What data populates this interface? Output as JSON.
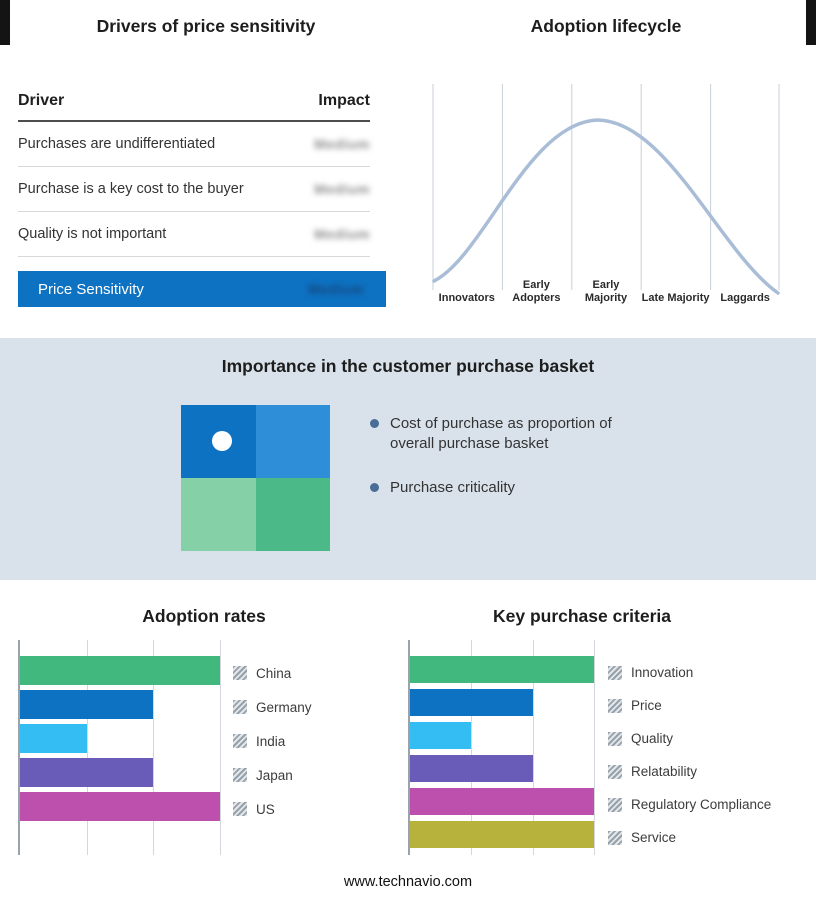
{
  "page": {
    "website": "www.technavio.com"
  },
  "colors": {
    "accent_blue": "#0d72c2",
    "light_blue": "#2f8ed8",
    "green": "#4cba88",
    "light_green": "#85d0a7",
    "curve": "#aabdd7",
    "section_bg": "#d9e2eb"
  },
  "drivers": {
    "title": "Drivers of price sensitivity",
    "columns": {
      "driver": "Driver",
      "impact": "Impact"
    },
    "rows": [
      {
        "driver": "Purchases are undifferentiated",
        "impact": "Medium",
        "impact_obscured": true
      },
      {
        "driver": "Purchase is a key cost to the buyer",
        "impact": "Medium",
        "impact_obscured": true
      },
      {
        "driver": "Quality is not important",
        "impact": "Medium",
        "impact_obscured": true
      }
    ],
    "summary": {
      "label": "Price Sensitivity",
      "impact": "Medium",
      "impact_obscured": true
    }
  },
  "lifecycle": {
    "title": "Adoption lifecycle",
    "stages": [
      "Innovators",
      "Early Adopters",
      "Early Majority",
      "Late Majority",
      "Laggards"
    ]
  },
  "basket": {
    "title": "Importance in the customer purchase basket",
    "bullets": [
      "Cost of purchase as proportion of overall purchase basket",
      "Purchase criticality"
    ]
  },
  "chart_data": [
    {
      "type": "line",
      "title": "Adoption lifecycle",
      "x_categories": [
        "Innovators",
        "Early Adopters",
        "Early Majority",
        "Late Majority",
        "Laggards"
      ],
      "shape": "bell curve peaking over Early Majority",
      "grid": "vertical stage separators",
      "y_axis": "none"
    },
    {
      "type": "bar",
      "orientation": "horizontal",
      "title": "Adoption rates",
      "categories": [
        "China",
        "Germany",
        "India",
        "Japan",
        "US"
      ],
      "values": [
        3,
        2,
        1,
        2,
        3
      ],
      "colors": [
        "#41b87e",
        "#0d72c2",
        "#33bdf2",
        "#695cb8",
        "#bd4fad"
      ],
      "xlim": [
        0,
        3
      ],
      "value_axis_labels": "none (relative gridline units)",
      "legend_position": "right"
    },
    {
      "type": "bar",
      "orientation": "horizontal",
      "title": "Key purchase criteria",
      "categories": [
        "Innovation",
        "Price",
        "Quality",
        "Relatability",
        "Regulatory Compliance",
        "Service"
      ],
      "values": [
        3,
        2,
        1,
        2,
        3,
        3
      ],
      "colors": [
        "#41b87e",
        "#0d72c2",
        "#33bdf2",
        "#695cb8",
        "#bd4fad",
        "#b7b23c"
      ],
      "xlim": [
        0,
        3
      ],
      "value_axis_labels": "none (relative gridline units)",
      "legend_position": "right"
    }
  ]
}
